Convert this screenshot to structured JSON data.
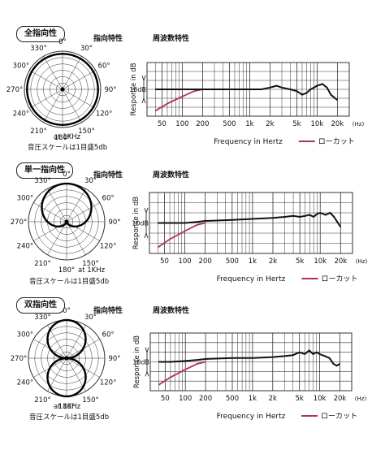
{
  "sections": [
    {
      "badge": "全指向性",
      "polar_label": "指向特性",
      "freq_label": "周波数特性",
      "note_line1": "at 1KHz",
      "note_line2": "音圧スケールは1目盛5db"
    },
    {
      "badge": "単一指向性",
      "polar_label": "指向特性",
      "freq_label": "周波数特性",
      "note_line1": "at 1KHz",
      "note_line2": "音圧スケールは1目盛5db"
    },
    {
      "badge": "双指向性",
      "polar_label": "指向特性",
      "freq_label": "周波数特性",
      "note_line1": "at 1KHz",
      "note_line2": "音圧スケールは1目盛5db"
    }
  ],
  "colors": {
    "response": "#111111",
    "lowcut": "#b2314e",
    "grid": "#333333"
  },
  "chart_data": [
    {
      "type": "polar",
      "pattern": "omnidirectional",
      "angle_labels": [
        "0°",
        "30°",
        "60°",
        "90°",
        "120°",
        "150°",
        "180°",
        "210°",
        "240°",
        "270°",
        "300°",
        "330°"
      ]
    },
    {
      "type": "line",
      "xscale": "log",
      "x_ticks": [
        50,
        100,
        200,
        500,
        1000,
        2000,
        5000,
        10000,
        20000
      ],
      "x_tick_labels": [
        "50",
        "100",
        "200",
        "500",
        "1k",
        "2k",
        "5k",
        "10k",
        "20k"
      ],
      "x_unit": "(Hz)",
      "xlabel": "Frequency in Hertz",
      "ylabel": "Response in dB",
      "scale_label": "10dB",
      "legend": "ローカット",
      "series": [
        {
          "values_x": [
            40,
            60,
            100,
            200,
            500,
            1000,
            1500,
            2000,
            2500,
            3000,
            4000,
            5000,
            6000,
            7000,
            8000,
            9000,
            10000,
            12000,
            14000,
            16000,
            20000
          ],
          "values_y": [
            0,
            0,
            0,
            0,
            0,
            0,
            0,
            1,
            2,
            1,
            0,
            -1,
            -3,
            -2,
            0,
            1,
            2,
            3,
            1,
            -3,
            -6
          ]
        },
        {
          "name": "ローカット",
          "values_x": [
            40,
            60,
            100,
            150,
            200
          ],
          "values_y": [
            -12,
            -8,
            -4,
            -1,
            0
          ]
        }
      ]
    },
    {
      "type": "polar",
      "pattern": "cardioid",
      "angle_labels": [
        "0°",
        "30°",
        "60°",
        "90°",
        "120°",
        "150°",
        "180°",
        "210°",
        "240°",
        "270°",
        "300°",
        "330°"
      ]
    },
    {
      "type": "line",
      "xscale": "log",
      "x_ticks": [
        50,
        100,
        200,
        500,
        1000,
        2000,
        5000,
        10000,
        20000
      ],
      "x_tick_labels": [
        "50",
        "100",
        "200",
        "500",
        "1k",
        "2k",
        "5k",
        "10k",
        "20k"
      ],
      "x_unit": "(Hz)",
      "xlabel": "Frequency in Hertz",
      "ylabel": "Response in dB",
      "scale_label": "10dB",
      "legend": "ローカット",
      "series": [
        {
          "values_x": [
            40,
            60,
            100,
            150,
            200,
            500,
            1000,
            2000,
            3000,
            4000,
            5000,
            6000,
            7000,
            8000,
            9000,
            10000,
            12000,
            14000,
            16000,
            20000
          ],
          "values_y": [
            0,
            0,
            0,
            0.5,
            1,
            1.5,
            2,
            2.5,
            3,
            3.5,
            3,
            3.5,
            4,
            3,
            4.5,
            5,
            4,
            5,
            3,
            -2
          ]
        },
        {
          "name": "ローカット",
          "values_x": [
            40,
            60,
            100,
            150,
            200
          ],
          "values_y": [
            -12,
            -8,
            -4,
            -1,
            0
          ]
        }
      ]
    },
    {
      "type": "polar",
      "pattern": "figure-8",
      "angle_labels": [
        "0°",
        "30°",
        "60°",
        "90°",
        "120°",
        "150°",
        "180°",
        "210°",
        "240°",
        "270°",
        "300°",
        "330°"
      ]
    },
    {
      "type": "line",
      "xscale": "log",
      "x_ticks": [
        50,
        100,
        200,
        500,
        1000,
        2000,
        5000,
        10000,
        20000
      ],
      "x_tick_labels": [
        "50",
        "100",
        "200",
        "500",
        "1k",
        "2k",
        "5k",
        "10k",
        "20k"
      ],
      "x_unit": "(Hz)",
      "xlabel": "Frequency in Hertz",
      "ylabel": "Response in dB",
      "scale_label": "10dB",
      "legend": "ローカット",
      "series": [
        {
          "values_x": [
            40,
            60,
            100,
            150,
            200,
            500,
            1000,
            2000,
            3000,
            4000,
            5000,
            6000,
            7000,
            8000,
            9000,
            10000,
            12000,
            14000,
            16000,
            18000,
            20000
          ],
          "values_y": [
            0,
            0,
            0.5,
            1,
            1.5,
            2,
            2,
            2.5,
            3,
            3.5,
            5,
            4,
            6,
            4,
            5,
            4,
            3,
            2,
            -1,
            -2,
            -1
          ]
        },
        {
          "name": "ローカット",
          "values_x": [
            40,
            60,
            100,
            150,
            200
          ],
          "values_y": [
            -12,
            -8,
            -4,
            -1,
            0
          ]
        }
      ]
    }
  ]
}
